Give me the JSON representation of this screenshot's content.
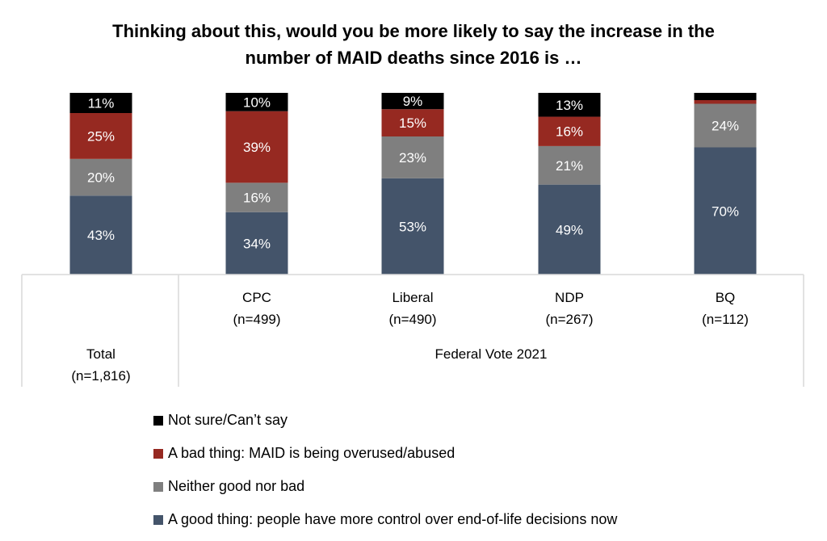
{
  "chart_data": {
    "type": "bar",
    "stacked": true,
    "percent_stacked": true,
    "title_lines": [
      "Thinking about this, would you be more likely to say the increase in the",
      "number of MAID deaths since 2016 is …"
    ],
    "categories": [
      {
        "label": "Total",
        "n": "(n=1,816)",
        "group": ""
      },
      {
        "label": "CPC",
        "n": "(n=499)",
        "group": "Federal Vote 2021"
      },
      {
        "label": "Liberal",
        "n": "(n=490)",
        "group": "Federal Vote 2021"
      },
      {
        "label": "NDP",
        "n": "(n=267)",
        "group": "Federal Vote 2021"
      },
      {
        "label": "BQ",
        "n": "(n=112)",
        "group": "Federal Vote 2021"
      }
    ],
    "group_label": "Federal Vote 2021",
    "series": [
      {
        "name": "A good thing: people have more control over end-of-life decisions now",
        "color": "#44546A",
        "values": [
          43,
          34,
          53,
          49,
          70
        ],
        "labels": [
          "43%",
          "34%",
          "53%",
          "49%",
          "70%"
        ]
      },
      {
        "name": "Neither good nor bad",
        "color": "#7F7F7F",
        "values": [
          20,
          16,
          23,
          21,
          24
        ],
        "labels": [
          "20%",
          "16%",
          "23%",
          "21%",
          "24%"
        ]
      },
      {
        "name": "A bad thing: MAID is being overused/abused",
        "color": "#962921",
        "values": [
          25,
          39,
          15,
          16,
          2
        ],
        "labels": [
          "25%",
          "39%",
          "15%",
          "16%",
          ""
        ]
      },
      {
        "name": "Not sure/Can’t say",
        "color": "#000000",
        "values": [
          11,
          10,
          9,
          13,
          4
        ],
        "labels": [
          "11%",
          "10%",
          "9%",
          "13%",
          ""
        ]
      }
    ],
    "legend_order": [
      3,
      2,
      1,
      0
    ],
    "legend_position": "bottom",
    "ylim": [
      0,
      100
    ],
    "xlabel": "",
    "ylabel": "",
    "grid": false
  }
}
